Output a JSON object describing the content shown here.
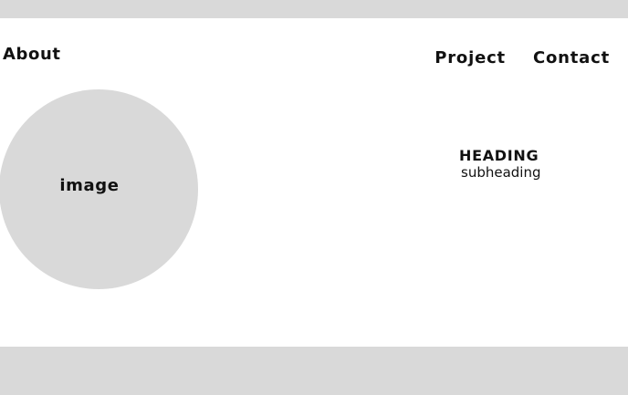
{
  "header": {
    "about_label": "About",
    "nav": {
      "project_label": "Project",
      "contact_label": "Contact"
    }
  },
  "hero": {
    "image_placeholder": "image",
    "heading": "HEADING",
    "subheading": "subheading"
  },
  "colors": {
    "bar_gray": "#d9d9d9",
    "background": "#ffffff",
    "text": "#111111"
  }
}
